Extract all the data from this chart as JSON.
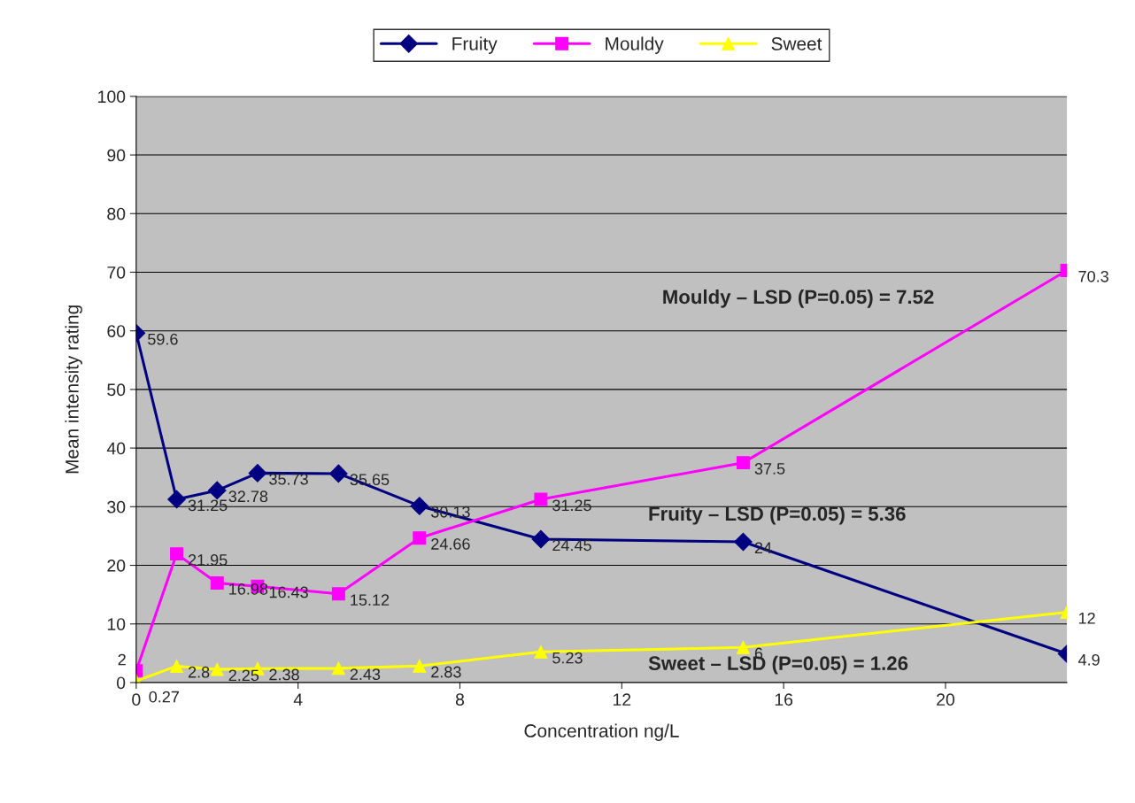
{
  "chart_data": {
    "type": "line",
    "xlabel": "Concentration ng/L",
    "ylabel": "Mean intensity rating",
    "x": [
      0,
      1,
      2,
      3,
      5,
      7,
      10,
      15,
      23
    ],
    "series": [
      {
        "name": "Fruity",
        "color": "#000080",
        "marker": "diamond",
        "values": [
          59.6,
          31.25,
          32.78,
          35.73,
          35.65,
          30.13,
          24.45,
          24,
          4.9
        ]
      },
      {
        "name": "Mouldy",
        "color": "#ff00ff",
        "marker": "square",
        "values": [
          2,
          21.95,
          16.98,
          16.43,
          15.12,
          24.66,
          31.25,
          37.5,
          70.3
        ]
      },
      {
        "name": "Sweet",
        "color": "#ffff00",
        "marker": "triangle",
        "values": [
          0.27,
          2.8,
          2.25,
          2.38,
          2.43,
          2.83,
          5.23,
          6,
          12
        ]
      }
    ],
    "xlim": [
      0,
      23
    ],
    "xticks": [
      0,
      4,
      8,
      12,
      16,
      20
    ],
    "ylim": [
      0,
      100
    ],
    "yticks": [
      0,
      10,
      20,
      30,
      40,
      50,
      60,
      70,
      80,
      90,
      100
    ],
    "grid": "y",
    "legend": "top",
    "data_labels": true,
    "line_style": "solid",
    "annotations": [
      "Mouldy – LSD (P=0.05) = 7.52",
      "Fruity – LSD (P=0.05) = 5.36",
      "Sweet – LSD (P=0.05) = 1.26"
    ]
  }
}
